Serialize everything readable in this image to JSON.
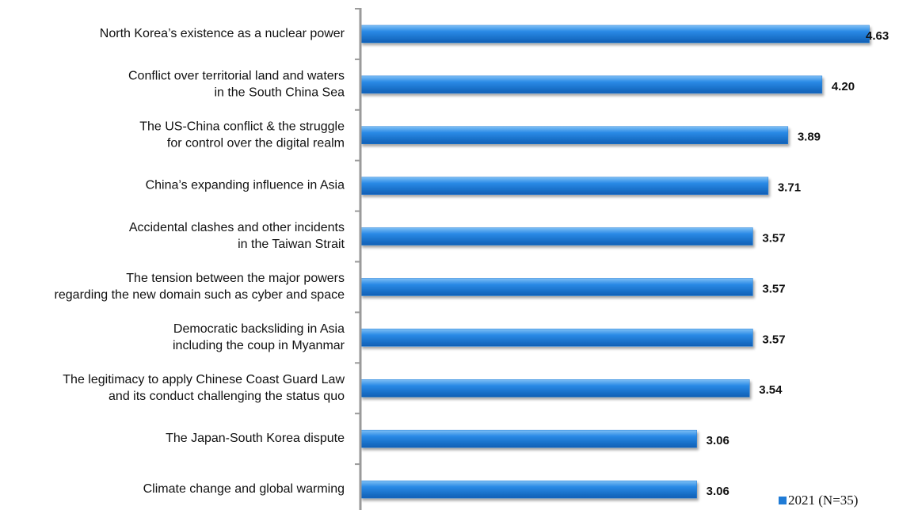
{
  "chart_data": {
    "type": "hbar",
    "categories": [
      [
        "North Korea’s existence as a nuclear power"
      ],
      [
        "Conflict over territorial land and waters",
        "in the South China Sea"
      ],
      [
        "The US-China conflict & the struggle",
        "for control over the digital realm"
      ],
      [
        "China’s expanding influence in Asia"
      ],
      [
        "Accidental clashes and other incidents",
        "in the Taiwan Strait"
      ],
      [
        "The tension between the major powers",
        "regarding the new domain such as cyber and space"
      ],
      [
        "Democratic backsliding in Asia",
        "including the coup in Myanmar"
      ],
      [
        "The legitimacy to apply Chinese Coast Guard Law",
        "and its conduct challenging the status quo"
      ],
      [
        "The Japan-South Korea dispute"
      ],
      [
        "Climate change and global warming"
      ]
    ],
    "series": [
      {
        "name": "2021 (N=35)",
        "color": "#1f7bd6",
        "values": [
          4.63,
          4.2,
          3.89,
          3.71,
          3.57,
          3.57,
          3.57,
          3.54,
          3.06,
          3.06
        ],
        "value_labels": [
          "4.63",
          "4.20",
          "3.89",
          "3.71",
          "3.57",
          "3.57",
          "3.57",
          "3.54",
          "3.06",
          "3.06"
        ]
      }
    ],
    "xlim": [
      0,
      4.9
    ],
    "legend": "lower right"
  }
}
